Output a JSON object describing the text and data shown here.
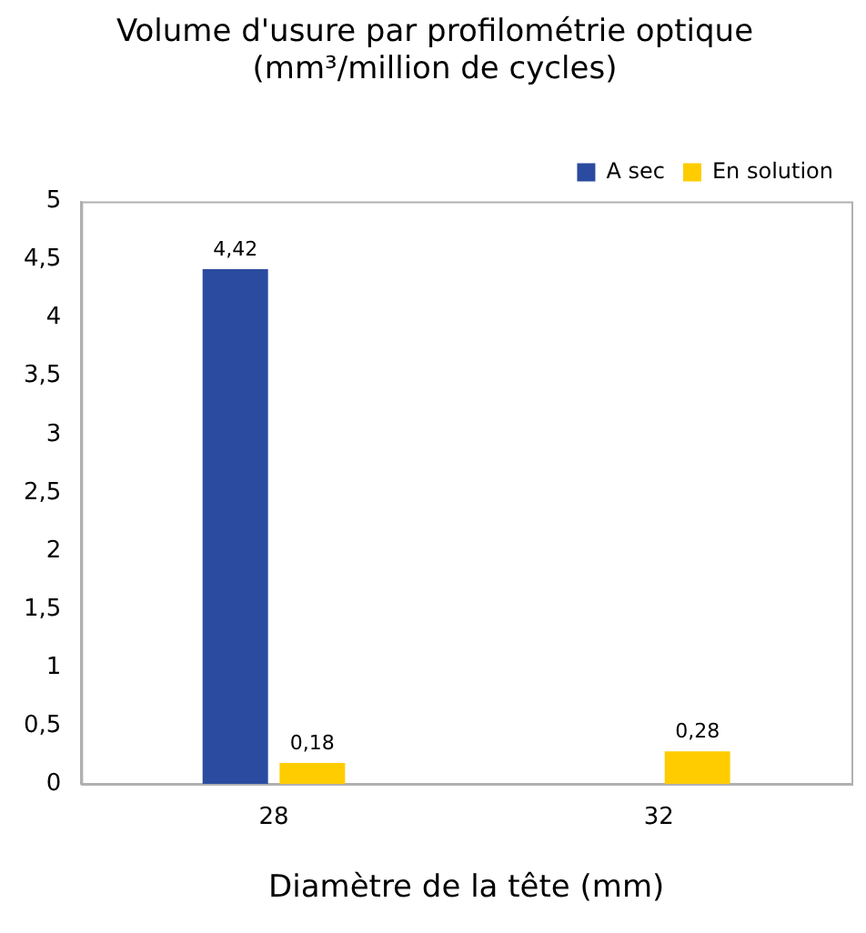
{
  "chart_data": {
    "type": "bar",
    "title": "Volume d'usure par profilométrie optique\n(mm³/million de cycles)",
    "xlabel": "Diamètre de la tête (mm)",
    "categories": [
      "28",
      "32"
    ],
    "series": [
      {
        "name": "A sec",
        "color": "#2b4ba0",
        "values": [
          4.42,
          null
        ],
        "value_labels": [
          "4,42",
          null
        ]
      },
      {
        "name": "En solution",
        "color": "#ffcc00",
        "values": [
          0.18,
          0.28
        ],
        "value_labels": [
          "0,18",
          "0,28"
        ]
      }
    ],
    "ylim": [
      0,
      5
    ],
    "yticks": [
      0,
      {
        "value": 0.5,
        "label": "0,5"
      },
      1,
      {
        "value": 1.5,
        "label": "1,5"
      },
      2,
      {
        "value": 2.5,
        "label": "2,5"
      },
      3,
      {
        "value": 3.5,
        "label": "3,5"
      },
      4,
      {
        "value": 4.5,
        "label": "4,5"
      },
      5
    ],
    "grid": false,
    "legend": "top right"
  }
}
